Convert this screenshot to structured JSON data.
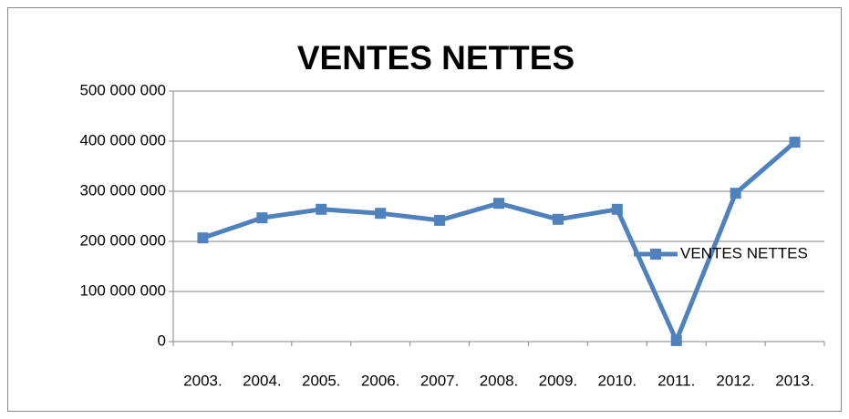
{
  "chart_data": {
    "type": "line",
    "title": "VENTES NETTES",
    "categories": [
      "2003.",
      "2004.",
      "2005.",
      "2006.",
      "2007.",
      "2008.",
      "2009.",
      "2010.",
      "2011.",
      "2012.",
      "2013."
    ],
    "series": [
      {
        "name": "VENTES NETTES",
        "color": "#4f81bd",
        "values": [
          207000000,
          247000000,
          264000000,
          256000000,
          242000000,
          276000000,
          244000000,
          264000000,
          2000000,
          296000000,
          398000000
        ]
      }
    ],
    "ylim": [
      0,
      500000000
    ],
    "yticks": [
      0,
      {
        "value": 100000000,
        "label": "100 000 000"
      },
      {
        "value": 200000000,
        "label": "200 000 000"
      },
      {
        "value": 300000000,
        "label": "300 000 000"
      },
      {
        "value": 400000000,
        "label": "400 000 000"
      },
      {
        "value": 500000000,
        "label": "500 000 000"
      }
    ],
    "grid": true,
    "legend": "right"
  }
}
